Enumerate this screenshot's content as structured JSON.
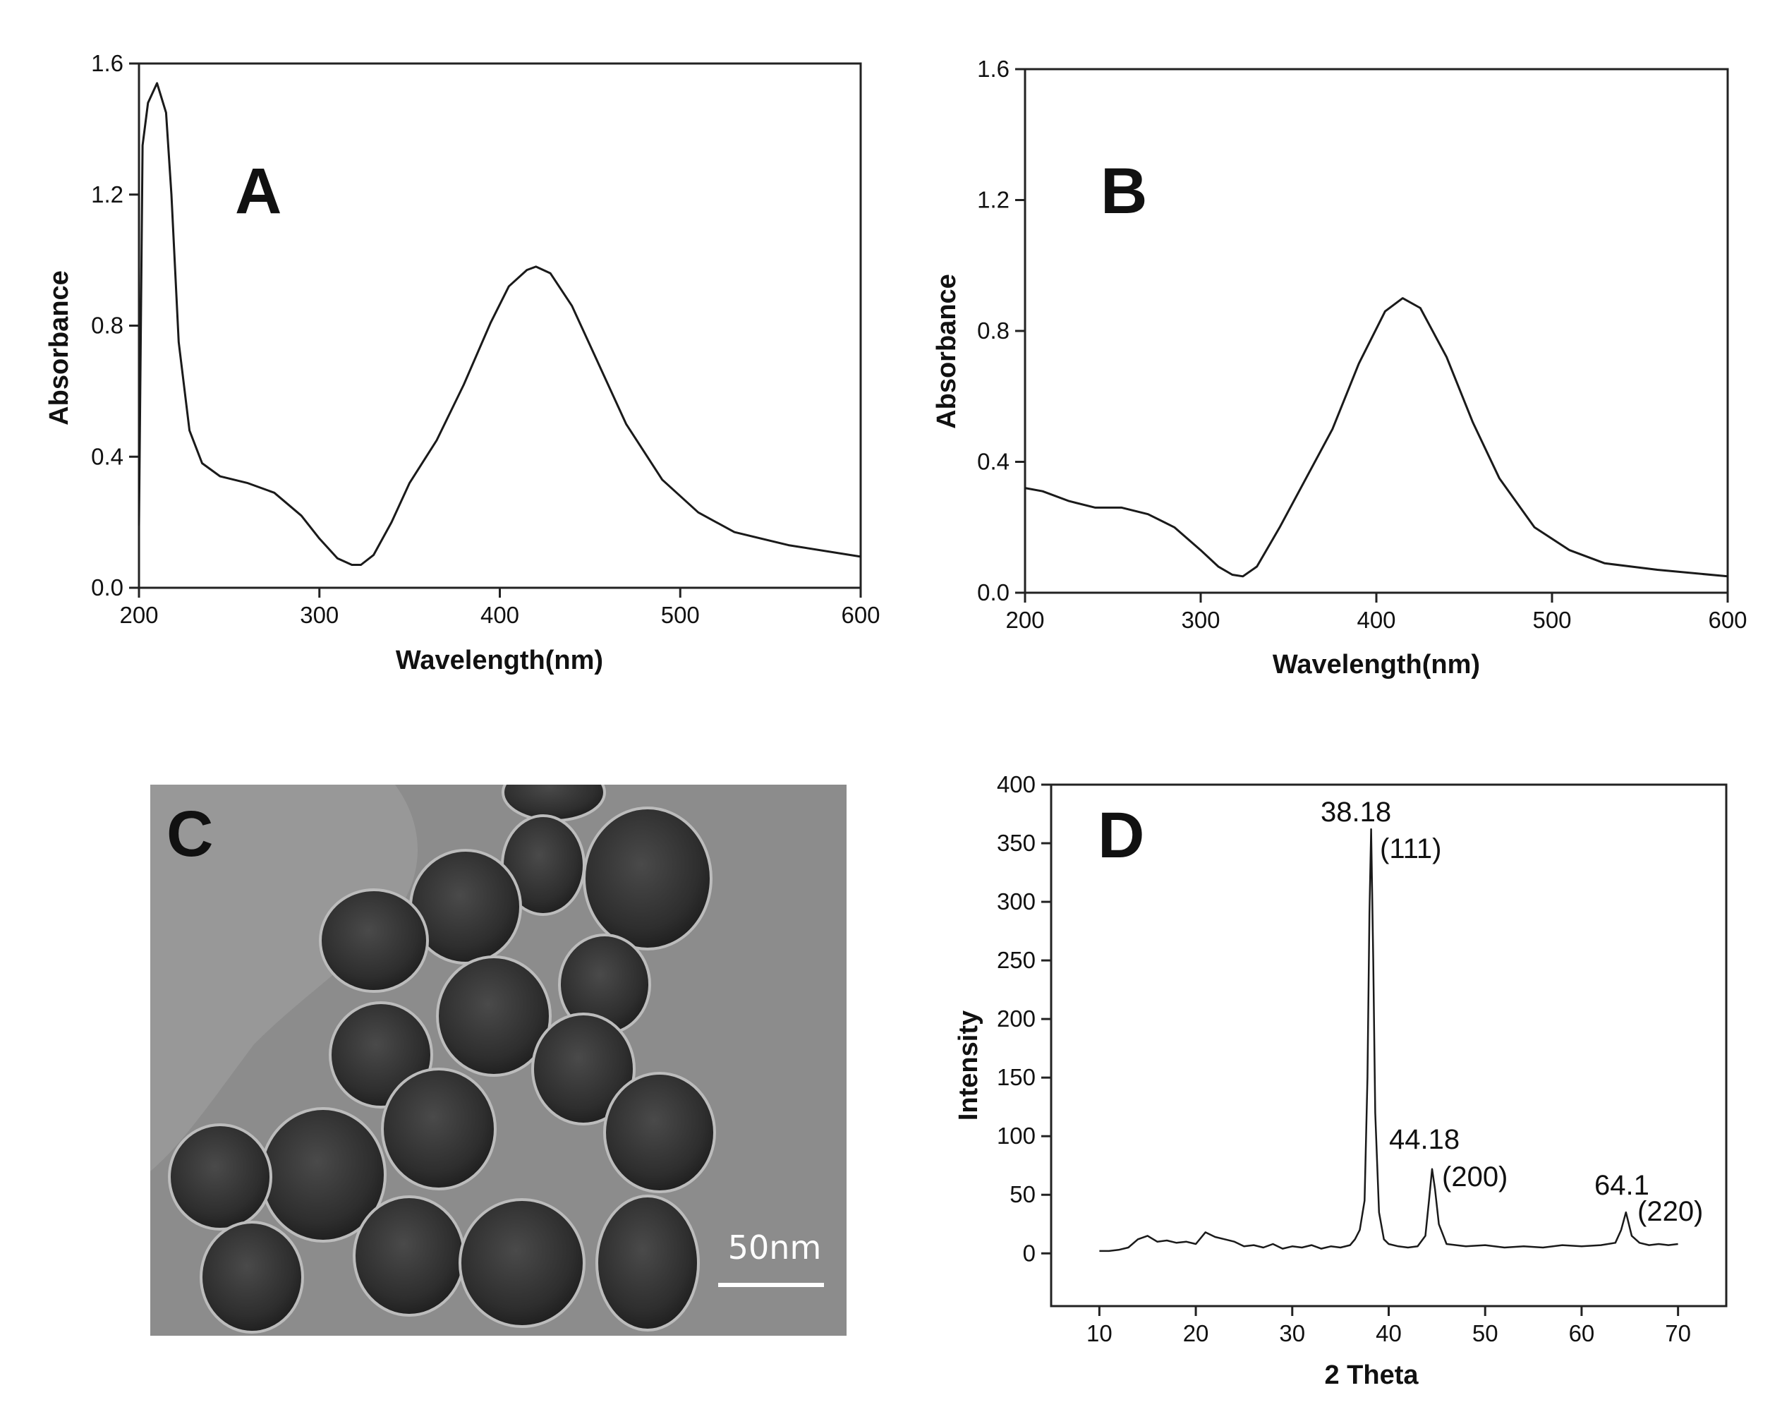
{
  "panels": {
    "A": {
      "label": "A",
      "chart_data": {
        "type": "line",
        "xlabel": "Wavelength(nm)",
        "ylabel": "Absorbance",
        "xlim": [
          200,
          600
        ],
        "ylim": [
          0,
          1.6
        ],
        "xticks": [
          200,
          300,
          400,
          500,
          600
        ],
        "yticks": [
          0.0,
          0.4,
          0.8,
          1.2,
          1.6
        ],
        "xtick_labels": [
          "200",
          "300",
          "400",
          "500",
          "600"
        ],
        "ytick_labels": [
          "0.0",
          "0.4",
          "0.8",
          "1.2",
          "1.6"
        ],
        "series": [
          {
            "x": [
              200,
              202,
              205,
              210,
              215,
              218,
              222,
              228,
              235,
              245,
              260,
              275,
              290,
              300,
              310,
              318,
              323,
              330,
              340,
              350,
              365,
              380,
              395,
              405,
              415,
              420,
              428,
              440,
              455,
              470,
              490,
              510,
              530,
              560,
              600
            ],
            "y": [
              0.19,
              1.35,
              1.48,
              1.54,
              1.45,
              1.2,
              0.75,
              0.48,
              0.38,
              0.34,
              0.32,
              0.29,
              0.22,
              0.15,
              0.09,
              0.07,
              0.07,
              0.1,
              0.2,
              0.32,
              0.45,
              0.62,
              0.81,
              0.92,
              0.97,
              0.98,
              0.96,
              0.86,
              0.68,
              0.5,
              0.33,
              0.23,
              0.17,
              0.13,
              0.095
            ]
          }
        ]
      }
    },
    "B": {
      "label": "B",
      "chart_data": {
        "type": "line",
        "xlabel": "Wavelength(nm)",
        "ylabel": "Absorbance",
        "xlim": [
          200,
          600
        ],
        "ylim": [
          0,
          1.6
        ],
        "xticks": [
          200,
          300,
          400,
          500,
          600
        ],
        "yticks": [
          0.0,
          0.4,
          0.8,
          1.2,
          1.6
        ],
        "xtick_labels": [
          "200",
          "300",
          "400",
          "500",
          "600"
        ],
        "ytick_labels": [
          "0.0",
          "0.4",
          "0.8",
          "1.2",
          "1.6"
        ],
        "series": [
          {
            "x": [
              200,
              210,
              225,
              240,
              255,
              270,
              285,
              300,
              310,
              318,
              324,
              332,
              345,
              360,
              375,
              390,
              405,
              415,
              425,
              440,
              455,
              470,
              490,
              510,
              530,
              560,
              600
            ],
            "y": [
              0.32,
              0.31,
              0.28,
              0.26,
              0.26,
              0.24,
              0.2,
              0.13,
              0.08,
              0.055,
              0.05,
              0.08,
              0.2,
              0.35,
              0.5,
              0.7,
              0.86,
              0.9,
              0.87,
              0.72,
              0.52,
              0.35,
              0.2,
              0.13,
              0.09,
              0.07,
              0.05
            ]
          }
        ]
      }
    },
    "C": {
      "label": "C",
      "scale_bar_label": "50nm"
    },
    "D": {
      "label": "D",
      "chart_data": {
        "type": "line",
        "xlabel": "2 Theta",
        "ylabel": "Intensity",
        "xlim": [
          5,
          75
        ],
        "ylim": [
          -45,
          400
        ],
        "xticks": [
          10,
          20,
          30,
          40,
          50,
          60,
          70
        ],
        "yticks": [
          0,
          50,
          100,
          150,
          200,
          250,
          300,
          350,
          400
        ],
        "xtick_labels": [
          "10",
          "20",
          "30",
          "40",
          "50",
          "60",
          "70"
        ],
        "ytick_labels": [
          "0",
          "50",
          "100",
          "150",
          "200",
          "250",
          "300",
          "350",
          "400"
        ],
        "series": [
          {
            "x": [
              10,
              11,
              12,
              13,
              14,
              15,
              16,
              17,
              18,
              19,
              20,
              21,
              22,
              23,
              24,
              25,
              26,
              27,
              28,
              29,
              30,
              31,
              32,
              33,
              34,
              35,
              36,
              36.5,
              37,
              37.5,
              37.8,
              38.0,
              38.18,
              38.4,
              38.6,
              39,
              39.5,
              40,
              41,
              42,
              43,
              43.8,
              44.18,
              44.5,
              44.8,
              45.2,
              46,
              48,
              50,
              52,
              54,
              56,
              58,
              60,
              62,
              63.5,
              64.1,
              64.6,
              65.2,
              66,
              67,
              68,
              69,
              70
            ],
            "y": [
              2,
              2,
              3,
              5,
              12,
              15,
              10,
              11,
              9,
              10,
              8,
              18,
              14,
              12,
              10,
              6,
              7,
              5,
              8,
              4,
              6,
              5,
              7,
              4,
              6,
              5,
              7,
              12,
              20,
              45,
              150,
              290,
              362,
              250,
              120,
              35,
              12,
              8,
              6,
              5,
              6,
              15,
              45,
              72,
              55,
              25,
              8,
              6,
              7,
              5,
              6,
              5,
              7,
              6,
              7,
              9,
              20,
              35,
              15,
              9,
              7,
              8,
              7,
              8
            ]
          }
        ],
        "annotations": [
          {
            "text": "38.18",
            "x": 38.18
          },
          {
            "text": "(111)",
            "x": 38.18
          },
          {
            "text": "44.18",
            "x": 44.18
          },
          {
            "text": "(200)",
            "x": 44.18
          },
          {
            "text": "64.1",
            "x": 64.1
          },
          {
            "text": "(220)",
            "x": 64.1
          }
        ]
      }
    }
  }
}
